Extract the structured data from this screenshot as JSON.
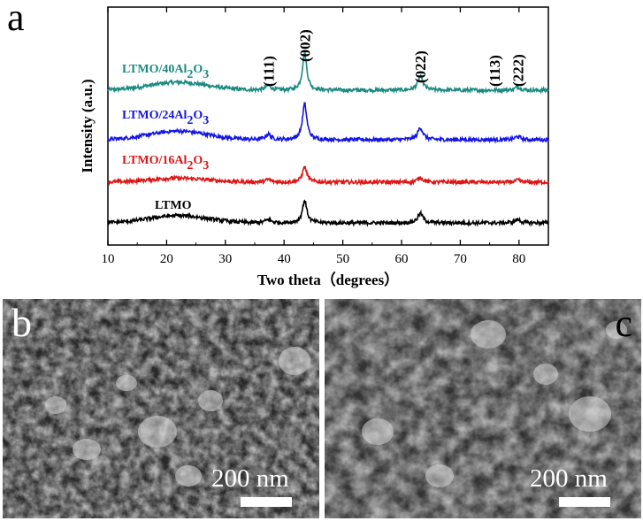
{
  "panels": {
    "a": {
      "letter": "a"
    },
    "b": {
      "letter": "b",
      "scale_text": "200 nm"
    },
    "c": {
      "letter": "c",
      "scale_text": "200 nm"
    }
  },
  "chart_data": {
    "type": "line",
    "xlabel": "Two theta（degrees）",
    "ylabel": "Intensity (a.u.)",
    "xlim": [
      10,
      85
    ],
    "xticks": [
      10,
      20,
      30,
      40,
      50,
      60,
      70,
      80
    ],
    "yticks_shown": false,
    "grid": false,
    "annotations": [
      {
        "text": "(111)",
        "x": 37.3
      },
      {
        "text": "(002)",
        "x": 43.5
      },
      {
        "text": "(022)",
        "x": 63.2
      },
      {
        "text": "(113)",
        "x": 75.8
      },
      {
        "text": "(222)",
        "x": 79.8
      }
    ],
    "series": [
      {
        "name": "LTMO/40Al2O3",
        "label_main": "LTMO/40Al",
        "label_sub1": "2",
        "label_mid": "O",
        "label_sub2": "3",
        "color": "#1a8a82",
        "offset": 3,
        "peaks": [
          [
            37.3,
            0.35
          ],
          [
            43.5,
            2.8
          ],
          [
            63.2,
            1.0
          ],
          [
            79.8,
            0.25
          ]
        ],
        "hump": 0.6
      },
      {
        "name": "LTMO/24Al2O3",
        "label_main": "LTMO/24Al",
        "label_sub1": "2",
        "label_mid": "O",
        "label_sub2": "3",
        "color": "#1414e6",
        "offset": 2,
        "peaks": [
          [
            37.3,
            0.4
          ],
          [
            43.5,
            2.7
          ],
          [
            63.2,
            0.9
          ],
          [
            79.8,
            0.25
          ]
        ],
        "hump": 0.65
      },
      {
        "name": "LTMO/16Al2O3",
        "label_main": "LTMO/16Al",
        "label_sub1": "2",
        "label_mid": "O",
        "label_sub2": "3",
        "color": "#e01414",
        "offset": 1,
        "peaks": [
          [
            37.3,
            0.2
          ],
          [
            43.5,
            1.15
          ],
          [
            63.2,
            0.35
          ],
          [
            79.8,
            0.15
          ]
        ],
        "hump": 0.3
      },
      {
        "name": "LTMO",
        "label_main": "LTMO",
        "label_sub1": "",
        "label_mid": "",
        "label_sub2": "",
        "color": "#000000",
        "offset": 0,
        "peaks": [
          [
            37.3,
            0.25
          ],
          [
            43.5,
            1.7
          ],
          [
            63.2,
            0.7
          ],
          [
            79.8,
            0.25
          ]
        ],
        "hump": 0.55
      }
    ]
  }
}
